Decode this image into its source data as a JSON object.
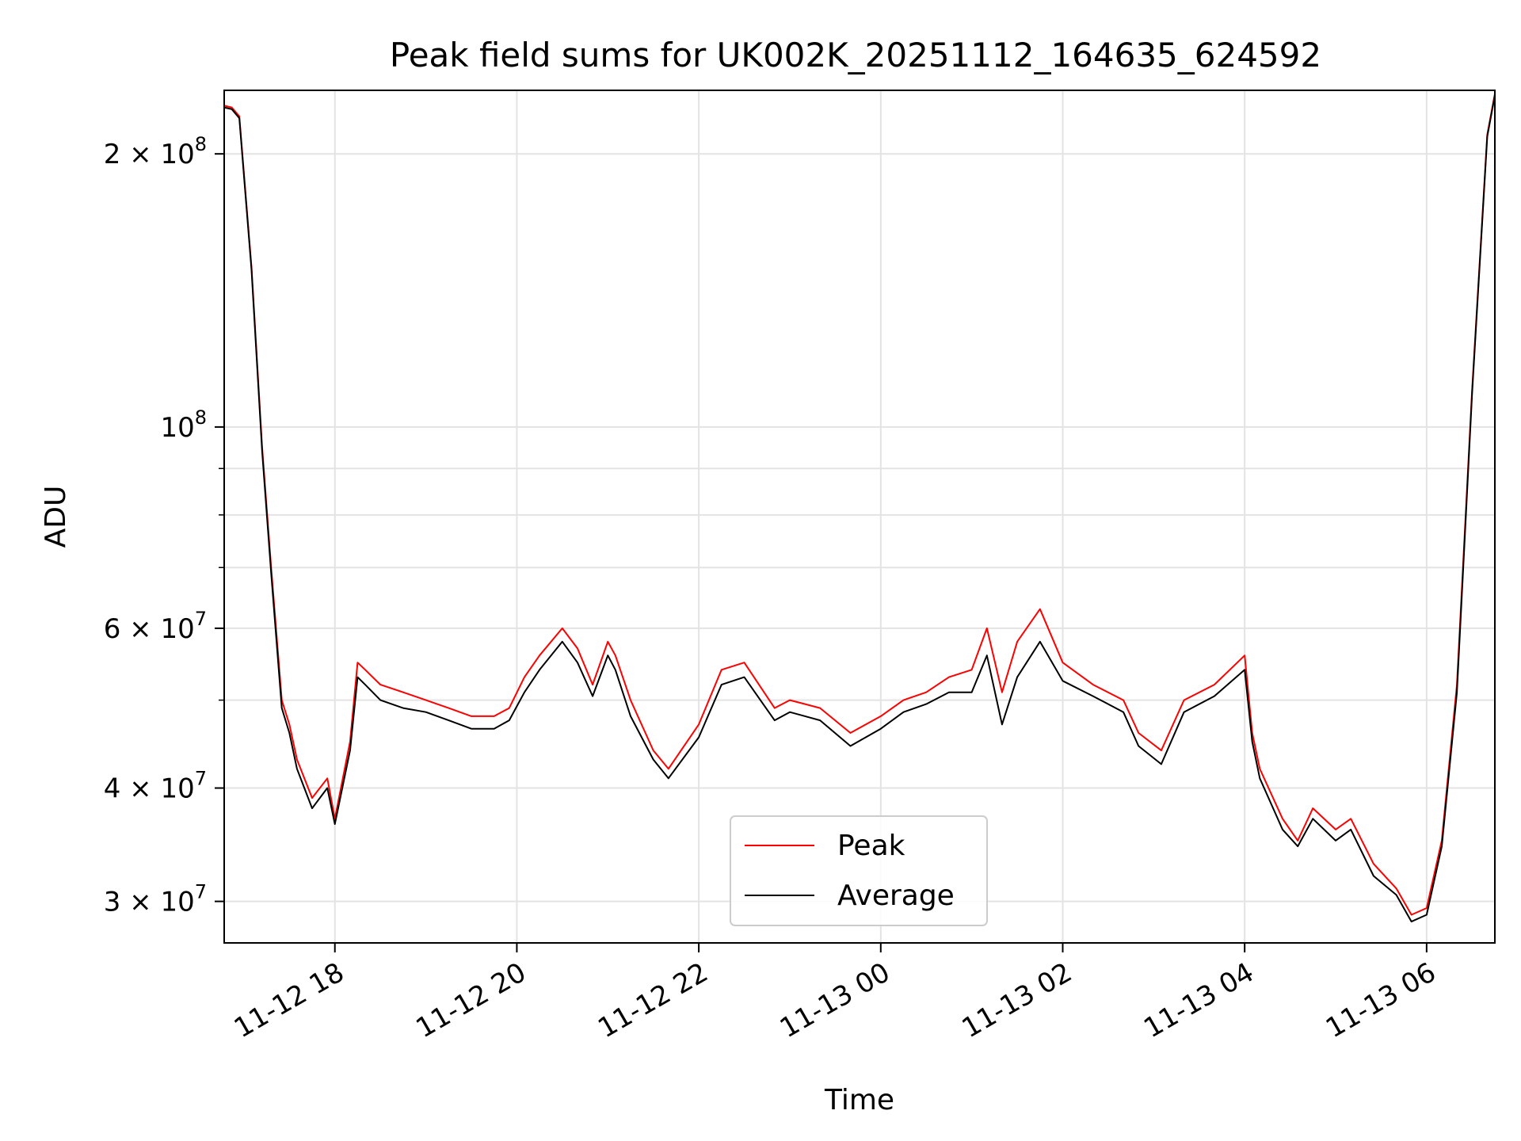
{
  "chart_data": {
    "type": "line",
    "title": "Peak field sums for UK002K_20251112_164635_624592",
    "xlabel": "Time",
    "ylabel": "ADU",
    "yscale": "log",
    "xlim": [
      "2025-11-12 16:47",
      "2025-11-13 06:45"
    ],
    "ylim": [
      27000000,
      235000000
    ],
    "grid": true,
    "legend_position": "lower center",
    "x_ticks": [
      {
        "value": "2025-11-12 18:00",
        "label": "11-12 18"
      },
      {
        "value": "2025-11-12 20:00",
        "label": "11-12 20"
      },
      {
        "value": "2025-11-12 22:00",
        "label": "11-12 22"
      },
      {
        "value": "2025-11-13 00:00",
        "label": "11-13 00"
      },
      {
        "value": "2025-11-13 02:00",
        "label": "11-13 02"
      },
      {
        "value": "2025-11-13 04:00",
        "label": "11-13 04"
      },
      {
        "value": "2025-11-13 06:00",
        "label": "11-13 06"
      }
    ],
    "y_ticks": [
      {
        "value": 30000000,
        "mantissa": "3",
        "exponent": "7"
      },
      {
        "value": 40000000,
        "mantissa": "4",
        "exponent": "7"
      },
      {
        "value": 60000000,
        "mantissa": "6",
        "exponent": "7"
      },
      {
        "value": 100000000,
        "mantissa": "",
        "exponent": "8"
      },
      {
        "value": 200000000,
        "mantissa": "2",
        "exponent": "8"
      }
    ],
    "y_minor_ticks": [
      50000000,
      70000000,
      80000000,
      90000000
    ],
    "series": [
      {
        "name": "Peak",
        "color": "#ff0000",
        "x": [
          "2025-11-12 16:47",
          "2025-11-12 16:52",
          "2025-11-12 16:57",
          "2025-11-12 17:05",
          "2025-11-12 17:12",
          "2025-11-12 17:18",
          "2025-11-12 17:25",
          "2025-11-12 17:30",
          "2025-11-12 17:35",
          "2025-11-12 17:45",
          "2025-11-12 17:55",
          "2025-11-12 18:00",
          "2025-11-12 18:10",
          "2025-11-12 18:15",
          "2025-11-12 18:20",
          "2025-11-12 18:30",
          "2025-11-12 18:45",
          "2025-11-12 19:00",
          "2025-11-12 19:15",
          "2025-11-12 19:30",
          "2025-11-12 19:45",
          "2025-11-12 19:55",
          "2025-11-12 20:05",
          "2025-11-12 20:15",
          "2025-11-12 20:30",
          "2025-11-12 20:40",
          "2025-11-12 20:50",
          "2025-11-12 21:00",
          "2025-11-12 21:05",
          "2025-11-12 21:15",
          "2025-11-12 21:30",
          "2025-11-12 21:40",
          "2025-11-12 22:00",
          "2025-11-12 22:15",
          "2025-11-12 22:30",
          "2025-11-12 22:50",
          "2025-11-12 23:00",
          "2025-11-12 23:20",
          "2025-11-12 23:40",
          "2025-11-13 00:00",
          "2025-11-13 00:15",
          "2025-11-13 00:30",
          "2025-11-13 00:45",
          "2025-11-13 01:00",
          "2025-11-13 01:10",
          "2025-11-13 01:20",
          "2025-11-13 01:30",
          "2025-11-13 01:45",
          "2025-11-13 02:00",
          "2025-11-13 02:20",
          "2025-11-13 02:40",
          "2025-11-13 02:50",
          "2025-11-13 03:05",
          "2025-11-13 03:20",
          "2025-11-13 03:40",
          "2025-11-13 04:00",
          "2025-11-13 04:05",
          "2025-11-13 04:10",
          "2025-11-13 04:25",
          "2025-11-13 04:35",
          "2025-11-13 04:45",
          "2025-11-13 05:00",
          "2025-11-13 05:10",
          "2025-11-13 05:25",
          "2025-11-13 05:40",
          "2025-11-13 05:50",
          "2025-11-13 06:00",
          "2025-11-13 06:10",
          "2025-11-13 06:20",
          "2025-11-13 06:30",
          "2025-11-13 06:40",
          "2025-11-13 06:45"
        ],
        "y": [
          226000000,
          225000000,
          220000000,
          150000000,
          95000000,
          70000000,
          50000000,
          47000000,
          43000000,
          39000000,
          41000000,
          37000000,
          45000000,
          55000000,
          54000000,
          52000000,
          51000000,
          50000000,
          49000000,
          48000000,
          48000000,
          49000000,
          53000000,
          56000000,
          60000000,
          57000000,
          52000000,
          58000000,
          56000000,
          50000000,
          44000000,
          42000000,
          47000000,
          54000000,
          55000000,
          49000000,
          50000000,
          49000000,
          46000000,
          48000000,
          50000000,
          51000000,
          53000000,
          54000000,
          60000000,
          51000000,
          58000000,
          63000000,
          55000000,
          52000000,
          50000000,
          46000000,
          44000000,
          50000000,
          52000000,
          56000000,
          46000000,
          42000000,
          37000000,
          35000000,
          38000000,
          36000000,
          37000000,
          33000000,
          31000000,
          29000000,
          29500000,
          35000000,
          52000000,
          110000000,
          210000000,
          233000000
        ]
      },
      {
        "name": "Average",
        "color": "#000000",
        "x": [
          "2025-11-12 16:47",
          "2025-11-12 16:52",
          "2025-11-12 16:57",
          "2025-11-12 17:05",
          "2025-11-12 17:12",
          "2025-11-12 17:18",
          "2025-11-12 17:25",
          "2025-11-12 17:30",
          "2025-11-12 17:35",
          "2025-11-12 17:45",
          "2025-11-12 17:55",
          "2025-11-12 18:00",
          "2025-11-12 18:10",
          "2025-11-12 18:15",
          "2025-11-12 18:20",
          "2025-11-12 18:30",
          "2025-11-12 18:45",
          "2025-11-12 19:00",
          "2025-11-12 19:15",
          "2025-11-12 19:30",
          "2025-11-12 19:45",
          "2025-11-12 19:55",
          "2025-11-12 20:05",
          "2025-11-12 20:15",
          "2025-11-12 20:30",
          "2025-11-12 20:40",
          "2025-11-12 20:50",
          "2025-11-12 21:00",
          "2025-11-12 21:05",
          "2025-11-12 21:15",
          "2025-11-12 21:30",
          "2025-11-12 21:40",
          "2025-11-12 22:00",
          "2025-11-12 22:15",
          "2025-11-12 22:30",
          "2025-11-12 22:50",
          "2025-11-12 23:00",
          "2025-11-12 23:20",
          "2025-11-12 23:40",
          "2025-11-13 00:00",
          "2025-11-13 00:15",
          "2025-11-13 00:30",
          "2025-11-13 00:45",
          "2025-11-13 01:00",
          "2025-11-13 01:10",
          "2025-11-13 01:20",
          "2025-11-13 01:30",
          "2025-11-13 01:45",
          "2025-11-13 02:00",
          "2025-11-13 02:20",
          "2025-11-13 02:40",
          "2025-11-13 02:50",
          "2025-11-13 03:05",
          "2025-11-13 03:20",
          "2025-11-13 03:40",
          "2025-11-13 04:00",
          "2025-11-13 04:05",
          "2025-11-13 04:10",
          "2025-11-13 04:25",
          "2025-11-13 04:35",
          "2025-11-13 04:45",
          "2025-11-13 05:00",
          "2025-11-13 05:10",
          "2025-11-13 05:25",
          "2025-11-13 05:40",
          "2025-11-13 05:50",
          "2025-11-13 06:00",
          "2025-11-13 06:10",
          "2025-11-13 06:20",
          "2025-11-13 06:30",
          "2025-11-13 06:40",
          "2025-11-13 06:45"
        ],
        "y": [
          225000000,
          224000000,
          219000000,
          149000000,
          94000000,
          69000000,
          49000000,
          46000000,
          42000000,
          38000000,
          40000000,
          36500000,
          44000000,
          53000000,
          52000000,
          50000000,
          49000000,
          48500000,
          47500000,
          46500000,
          46500000,
          47500000,
          51000000,
          54000000,
          58000000,
          55000000,
          50500000,
          56000000,
          54000000,
          48000000,
          43000000,
          41000000,
          45500000,
          52000000,
          53000000,
          47500000,
          48500000,
          47500000,
          44500000,
          46500000,
          48500000,
          49500000,
          51000000,
          51000000,
          56000000,
          47000000,
          53000000,
          58000000,
          52500000,
          50500000,
          48500000,
          44500000,
          42500000,
          48500000,
          50500000,
          54000000,
          45000000,
          41000000,
          36000000,
          34500000,
          37000000,
          35000000,
          36000000,
          32000000,
          30500000,
          28500000,
          29000000,
          34500000,
          51000000,
          109000000,
          209000000,
          232000000
        ]
      }
    ]
  }
}
